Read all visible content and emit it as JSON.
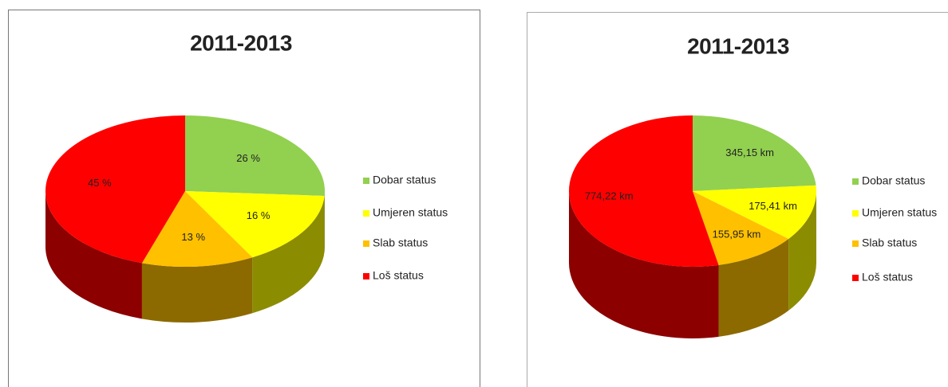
{
  "chart_data": [
    {
      "type": "pie",
      "title": "2011-2013",
      "categories": [
        "Dobar status",
        "Umjeren status",
        "Slab status",
        "Loš status"
      ],
      "values": [
        26,
        16,
        13,
        45
      ],
      "value_labels": [
        "26 %",
        "16 %",
        "13 %",
        "45 %"
      ],
      "colors": [
        "#92d050",
        "#ffff00",
        "#ffc000",
        "#ff0000"
      ]
    },
    {
      "type": "pie",
      "title": "2011-2013",
      "categories": [
        "Dobar status",
        "Umjeren status",
        "Slab status",
        "Loš status"
      ],
      "values": [
        345.15,
        175.41,
        155.95,
        774.22
      ],
      "value_labels": [
        "345,15 km",
        "175,41 km",
        "155,95 km",
        "774,22 km"
      ],
      "colors": [
        "#92d050",
        "#ffff00",
        "#ffc000",
        "#ff0000"
      ]
    }
  ]
}
